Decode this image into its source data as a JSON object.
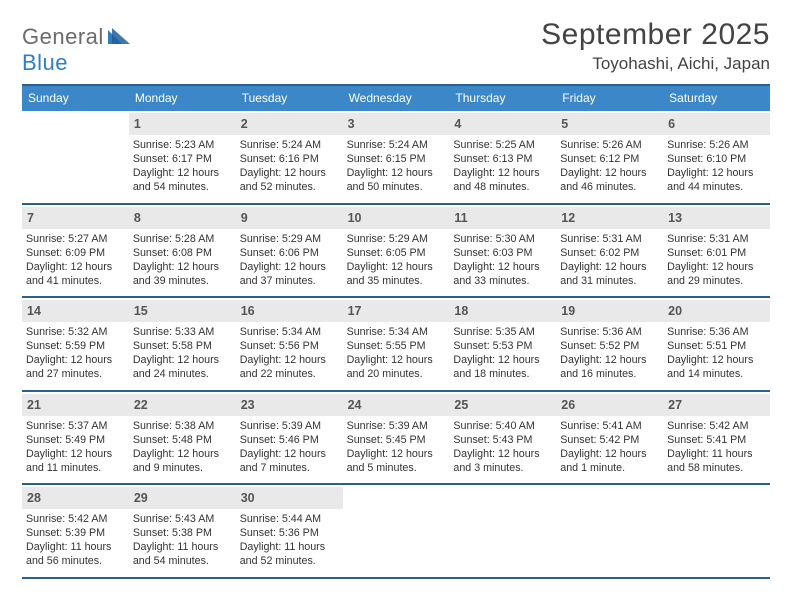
{
  "brand": {
    "word1": "General",
    "word2": "Blue"
  },
  "title": "September 2025",
  "location": "Toyohashi, Aichi, Japan",
  "colors": {
    "header_bg": "#3b87c8",
    "header_border": "#2b5f8f",
    "daynum_bg": "#e9e9e9",
    "text": "#333333",
    "title_text": "#444444",
    "logo_gray": "#6b6b6b",
    "logo_blue": "#2f7fbf"
  },
  "dow": [
    "Sunday",
    "Monday",
    "Tuesday",
    "Wednesday",
    "Thursday",
    "Friday",
    "Saturday"
  ],
  "weeks": [
    [
      {
        "n": "",
        "sr": "",
        "ss": "",
        "dl": ""
      },
      {
        "n": "1",
        "sr": "Sunrise: 5:23 AM",
        "ss": "Sunset: 6:17 PM",
        "dl": "Daylight: 12 hours and 54 minutes."
      },
      {
        "n": "2",
        "sr": "Sunrise: 5:24 AM",
        "ss": "Sunset: 6:16 PM",
        "dl": "Daylight: 12 hours and 52 minutes."
      },
      {
        "n": "3",
        "sr": "Sunrise: 5:24 AM",
        "ss": "Sunset: 6:15 PM",
        "dl": "Daylight: 12 hours and 50 minutes."
      },
      {
        "n": "4",
        "sr": "Sunrise: 5:25 AM",
        "ss": "Sunset: 6:13 PM",
        "dl": "Daylight: 12 hours and 48 minutes."
      },
      {
        "n": "5",
        "sr": "Sunrise: 5:26 AM",
        "ss": "Sunset: 6:12 PM",
        "dl": "Daylight: 12 hours and 46 minutes."
      },
      {
        "n": "6",
        "sr": "Sunrise: 5:26 AM",
        "ss": "Sunset: 6:10 PM",
        "dl": "Daylight: 12 hours and 44 minutes."
      }
    ],
    [
      {
        "n": "7",
        "sr": "Sunrise: 5:27 AM",
        "ss": "Sunset: 6:09 PM",
        "dl": "Daylight: 12 hours and 41 minutes."
      },
      {
        "n": "8",
        "sr": "Sunrise: 5:28 AM",
        "ss": "Sunset: 6:08 PM",
        "dl": "Daylight: 12 hours and 39 minutes."
      },
      {
        "n": "9",
        "sr": "Sunrise: 5:29 AM",
        "ss": "Sunset: 6:06 PM",
        "dl": "Daylight: 12 hours and 37 minutes."
      },
      {
        "n": "10",
        "sr": "Sunrise: 5:29 AM",
        "ss": "Sunset: 6:05 PM",
        "dl": "Daylight: 12 hours and 35 minutes."
      },
      {
        "n": "11",
        "sr": "Sunrise: 5:30 AM",
        "ss": "Sunset: 6:03 PM",
        "dl": "Daylight: 12 hours and 33 minutes."
      },
      {
        "n": "12",
        "sr": "Sunrise: 5:31 AM",
        "ss": "Sunset: 6:02 PM",
        "dl": "Daylight: 12 hours and 31 minutes."
      },
      {
        "n": "13",
        "sr": "Sunrise: 5:31 AM",
        "ss": "Sunset: 6:01 PM",
        "dl": "Daylight: 12 hours and 29 minutes."
      }
    ],
    [
      {
        "n": "14",
        "sr": "Sunrise: 5:32 AM",
        "ss": "Sunset: 5:59 PM",
        "dl": "Daylight: 12 hours and 27 minutes."
      },
      {
        "n": "15",
        "sr": "Sunrise: 5:33 AM",
        "ss": "Sunset: 5:58 PM",
        "dl": "Daylight: 12 hours and 24 minutes."
      },
      {
        "n": "16",
        "sr": "Sunrise: 5:34 AM",
        "ss": "Sunset: 5:56 PM",
        "dl": "Daylight: 12 hours and 22 minutes."
      },
      {
        "n": "17",
        "sr": "Sunrise: 5:34 AM",
        "ss": "Sunset: 5:55 PM",
        "dl": "Daylight: 12 hours and 20 minutes."
      },
      {
        "n": "18",
        "sr": "Sunrise: 5:35 AM",
        "ss": "Sunset: 5:53 PM",
        "dl": "Daylight: 12 hours and 18 minutes."
      },
      {
        "n": "19",
        "sr": "Sunrise: 5:36 AM",
        "ss": "Sunset: 5:52 PM",
        "dl": "Daylight: 12 hours and 16 minutes."
      },
      {
        "n": "20",
        "sr": "Sunrise: 5:36 AM",
        "ss": "Sunset: 5:51 PM",
        "dl": "Daylight: 12 hours and 14 minutes."
      }
    ],
    [
      {
        "n": "21",
        "sr": "Sunrise: 5:37 AM",
        "ss": "Sunset: 5:49 PM",
        "dl": "Daylight: 12 hours and 11 minutes."
      },
      {
        "n": "22",
        "sr": "Sunrise: 5:38 AM",
        "ss": "Sunset: 5:48 PM",
        "dl": "Daylight: 12 hours and 9 minutes."
      },
      {
        "n": "23",
        "sr": "Sunrise: 5:39 AM",
        "ss": "Sunset: 5:46 PM",
        "dl": "Daylight: 12 hours and 7 minutes."
      },
      {
        "n": "24",
        "sr": "Sunrise: 5:39 AM",
        "ss": "Sunset: 5:45 PM",
        "dl": "Daylight: 12 hours and 5 minutes."
      },
      {
        "n": "25",
        "sr": "Sunrise: 5:40 AM",
        "ss": "Sunset: 5:43 PM",
        "dl": "Daylight: 12 hours and 3 minutes."
      },
      {
        "n": "26",
        "sr": "Sunrise: 5:41 AM",
        "ss": "Sunset: 5:42 PM",
        "dl": "Daylight: 12 hours and 1 minute."
      },
      {
        "n": "27",
        "sr": "Sunrise: 5:42 AM",
        "ss": "Sunset: 5:41 PM",
        "dl": "Daylight: 11 hours and 58 minutes."
      }
    ],
    [
      {
        "n": "28",
        "sr": "Sunrise: 5:42 AM",
        "ss": "Sunset: 5:39 PM",
        "dl": "Daylight: 11 hours and 56 minutes."
      },
      {
        "n": "29",
        "sr": "Sunrise: 5:43 AM",
        "ss": "Sunset: 5:38 PM",
        "dl": "Daylight: 11 hours and 54 minutes."
      },
      {
        "n": "30",
        "sr": "Sunrise: 5:44 AM",
        "ss": "Sunset: 5:36 PM",
        "dl": "Daylight: 11 hours and 52 minutes."
      },
      {
        "n": "",
        "sr": "",
        "ss": "",
        "dl": ""
      },
      {
        "n": "",
        "sr": "",
        "ss": "",
        "dl": ""
      },
      {
        "n": "",
        "sr": "",
        "ss": "",
        "dl": ""
      },
      {
        "n": "",
        "sr": "",
        "ss": "",
        "dl": ""
      }
    ]
  ]
}
